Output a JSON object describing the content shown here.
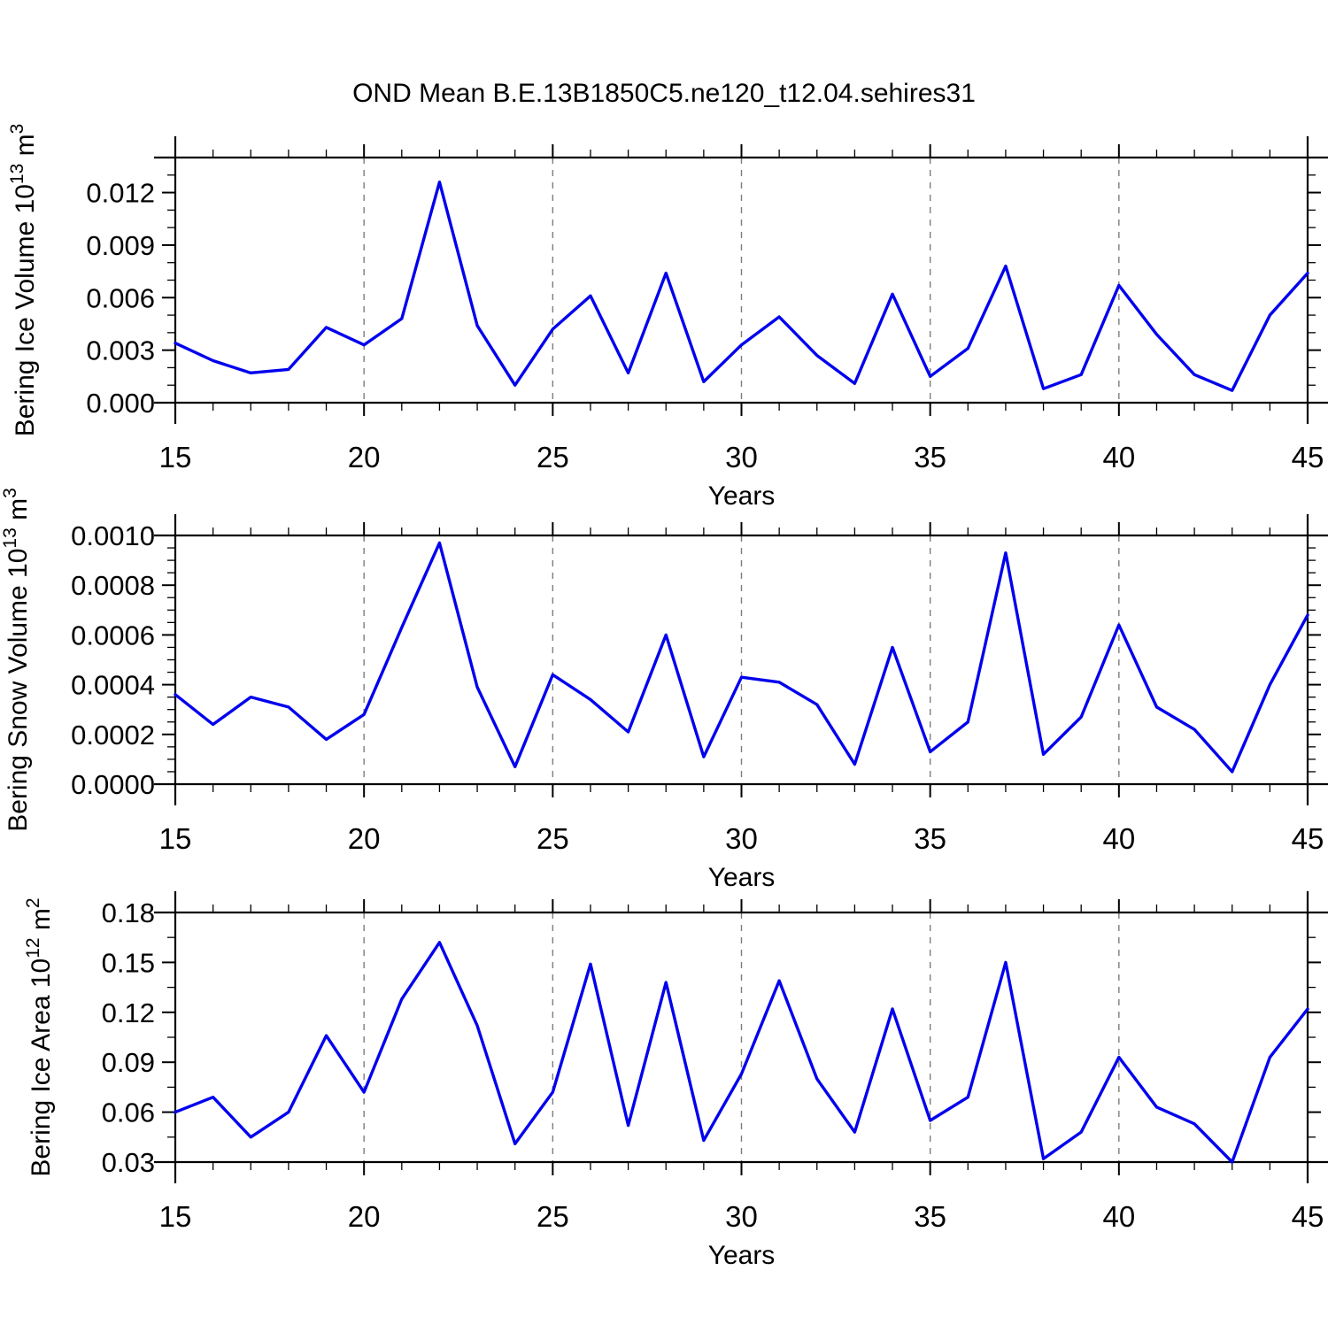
{
  "title": "OND Mean B.E.13B1850C5.ne120_t12.04.sehires31",
  "colors": {
    "line": "#0000ee",
    "grid": "#7d7d7d",
    "text": "#000000",
    "background": "#ffffff"
  },
  "x_axis": {
    "label": "Years",
    "min": 15,
    "max": 45,
    "major_tick_labels": [
      "15",
      "20",
      "25",
      "30",
      "35",
      "40",
      "45"
    ],
    "minor_step": 1,
    "gridline_years": [
      20,
      25,
      30,
      35,
      40
    ]
  },
  "chart_data": [
    {
      "type": "line",
      "name": "ice-volume",
      "ylabel": "Bering Ice Volume 10^13 m^3",
      "ylabel_runs": [
        [
          "Bering Ice Volume 10",
          0
        ],
        [
          "13",
          1
        ],
        [
          " m",
          0
        ],
        [
          "3",
          1
        ]
      ],
      "xlabel": "Years",
      "ylim": [
        0,
        0.014
      ],
      "y_major_step": 0.003,
      "y_minor_step": 0.001,
      "y_tick_labels": [
        "0.000",
        "0.003",
        "0.006",
        "0.009",
        "0.012"
      ],
      "x": [
        15,
        16,
        17,
        18,
        19,
        20,
        21,
        22,
        23,
        24,
        25,
        26,
        27,
        28,
        29,
        30,
        31,
        32,
        33,
        34,
        35,
        36,
        37,
        38,
        39,
        40,
        41,
        42,
        43,
        44,
        45
      ],
      "values": [
        0.0034,
        0.0024,
        0.0017,
        0.0019,
        0.0043,
        0.0033,
        0.0048,
        0.0126,
        0.0044,
        0.001,
        0.0042,
        0.0061,
        0.0017,
        0.0074,
        0.0012,
        0.0033,
        0.0049,
        0.0027,
        0.0011,
        0.0062,
        0.0015,
        0.0031,
        0.0078,
        0.0008,
        0.0016,
        0.0067,
        0.0039,
        0.0016,
        0.0007,
        0.005,
        0.0074
      ]
    },
    {
      "type": "line",
      "name": "snow-volume",
      "ylabel": "Bering Snow Volume 10^13 m^3",
      "ylabel_runs": [
        [
          "Bering Snow Volume 10",
          0
        ],
        [
          "13",
          1
        ],
        [
          " m",
          0
        ],
        [
          "3",
          1
        ]
      ],
      "xlabel": "Years",
      "ylim": [
        0,
        0.001
      ],
      "y_major_step": 0.0002,
      "y_minor_step": 5e-05,
      "y_tick_labels": [
        "0.0000",
        "0.0002",
        "0.0004",
        "0.0006",
        "0.0008",
        "0.0010"
      ],
      "x": [
        15,
        16,
        17,
        18,
        19,
        20,
        21,
        22,
        23,
        24,
        25,
        26,
        27,
        28,
        29,
        30,
        31,
        32,
        33,
        34,
        35,
        36,
        37,
        38,
        39,
        40,
        41,
        42,
        43,
        44,
        45
      ],
      "values": [
        0.00036,
        0.00024,
        0.00035,
        0.00031,
        0.00018,
        0.00028,
        0.00063,
        0.00097,
        0.00039,
        7e-05,
        0.00044,
        0.00034,
        0.00021,
        0.0006,
        0.00011,
        0.00043,
        0.00041,
        0.00032,
        8e-05,
        0.00055,
        0.00013,
        0.00025,
        0.00093,
        0.00012,
        0.00027,
        0.00064,
        0.00031,
        0.00022,
        5e-05,
        0.0004,
        0.00068
      ]
    },
    {
      "type": "line",
      "name": "ice-area",
      "ylabel": "Bering Ice Area 10^12 m^2",
      "ylabel_runs": [
        [
          "Bering Ice Area 10",
          0
        ],
        [
          "12",
          1
        ],
        [
          " m",
          0
        ],
        [
          "2",
          1
        ]
      ],
      "xlabel": "Years",
      "ylim": [
        0.03,
        0.18
      ],
      "y_major_step": 0.03,
      "y_minor_step": 0.015,
      "y_tick_labels": [
        "0.03",
        "0.06",
        "0.09",
        "0.12",
        "0.15",
        "0.18"
      ],
      "x": [
        15,
        16,
        17,
        18,
        19,
        20,
        21,
        22,
        23,
        24,
        25,
        26,
        27,
        28,
        29,
        30,
        31,
        32,
        33,
        34,
        35,
        36,
        37,
        38,
        39,
        40,
        41,
        42,
        43,
        44,
        45
      ],
      "values": [
        0.06,
        0.069,
        0.045,
        0.06,
        0.106,
        0.072,
        0.128,
        0.162,
        0.112,
        0.041,
        0.072,
        0.149,
        0.052,
        0.138,
        0.043,
        0.083,
        0.139,
        0.08,
        0.048,
        0.122,
        0.055,
        0.069,
        0.15,
        0.032,
        0.048,
        0.093,
        0.063,
        0.053,
        0.03,
        0.093,
        0.122
      ]
    }
  ]
}
